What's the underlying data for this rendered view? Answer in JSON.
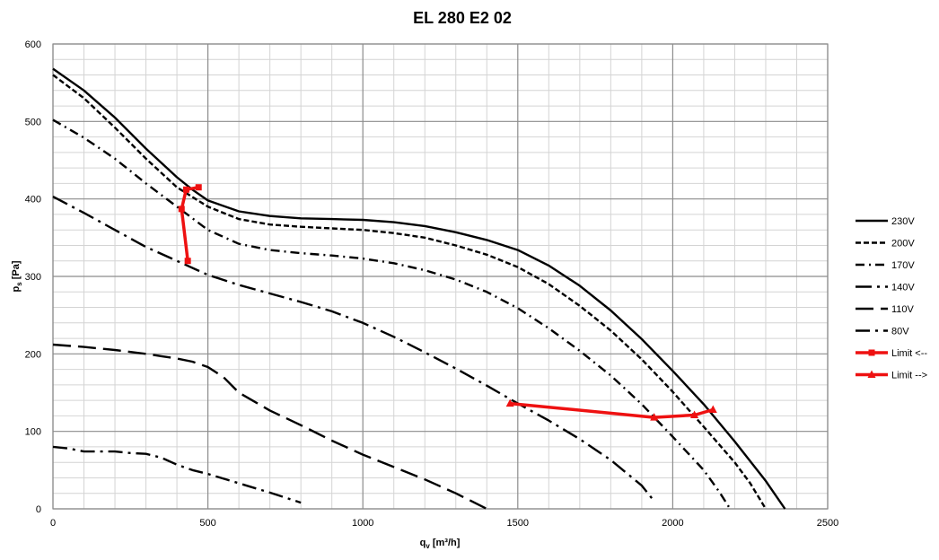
{
  "chart_data": {
    "type": "line",
    "title": "EL 280 E2 02",
    "xlabel": {
      "main": "q",
      "sub": "v",
      "unit": " [m³/h]"
    },
    "ylabel": {
      "main": "p",
      "sub": "s",
      "unit": " [Pa]"
    },
    "xlim": [
      0,
      2500
    ],
    "ylim": [
      0,
      600
    ],
    "x_ticks": [
      0,
      500,
      1000,
      1500,
      2000,
      2500
    ],
    "y_ticks": [
      0,
      100,
      200,
      300,
      400,
      500,
      600
    ],
    "grid": {
      "major": true,
      "minor": true
    },
    "legend": "right",
    "series": [
      {
        "name": "230V",
        "style": "solid",
        "color": "#000000",
        "x": [
          0,
          100,
          200,
          300,
          400,
          450,
          500,
          600,
          700,
          800,
          900,
          1000,
          1100,
          1200,
          1300,
          1400,
          1500,
          1600,
          1700,
          1800,
          1900,
          2000,
          2100,
          2200,
          2300,
          2362
        ],
        "y": [
          568,
          540,
          505,
          465,
          428,
          412,
          398,
          384,
          378,
          375,
          374,
          373,
          370,
          365,
          357,
          347,
          334,
          314,
          288,
          256,
          219,
          178,
          135,
          87,
          36,
          0
        ]
      },
      {
        "name": "200V",
        "style": "dash",
        "color": "#000000",
        "x": [
          0,
          100,
          200,
          300,
          400,
          500,
          600,
          700,
          800,
          900,
          1000,
          1100,
          1200,
          1300,
          1400,
          1500,
          1600,
          1700,
          1800,
          1900,
          2000,
          2100,
          2200,
          2250,
          2300
        ],
        "y": [
          560,
          530,
          492,
          452,
          415,
          390,
          374,
          367,
          364,
          362,
          360,
          356,
          350,
          340,
          328,
          312,
          290,
          262,
          230,
          193,
          151,
          106,
          60,
          33,
          0
        ]
      },
      {
        "name": "170V",
        "style": "dashdot",
        "color": "#000000",
        "x": [
          0,
          100,
          200,
          300,
          400,
          500,
          600,
          700,
          800,
          900,
          1000,
          1100,
          1200,
          1300,
          1400,
          1500,
          1600,
          1700,
          1800,
          1900,
          2000,
          2100,
          2150,
          2185
        ],
        "y": [
          502,
          479,
          452,
          420,
          390,
          360,
          342,
          334,
          330,
          327,
          323,
          317,
          308,
          296,
          280,
          259,
          233,
          204,
          172,
          135,
          93,
          50,
          22,
          0
        ]
      },
      {
        "name": "140V",
        "style": "longdashdot",
        "color": "#000000",
        "x": [
          0,
          100,
          200,
          300,
          400,
          500,
          600,
          700,
          800,
          900,
          1000,
          1100,
          1200,
          1300,
          1400,
          1500,
          1600,
          1700,
          1800,
          1900,
          1940
        ],
        "y": [
          403,
          382,
          360,
          338,
          320,
          302,
          289,
          278,
          267,
          255,
          240,
          222,
          202,
          181,
          159,
          136,
          114,
          90,
          63,
          30,
          10
        ]
      },
      {
        "name": "110V",
        "style": "longdash",
        "color": "#000000",
        "x": [
          0,
          100,
          200,
          300,
          350,
          400,
          450,
          500,
          550,
          600,
          700,
          800,
          900,
          1000,
          1100,
          1200,
          1300,
          1400
        ],
        "y": [
          212,
          209,
          205,
          200,
          197,
          194,
          190,
          183,
          170,
          150,
          127,
          108,
          88,
          70,
          54,
          38,
          20,
          0
        ]
      },
      {
        "name": "80V",
        "style": "longdashdot2",
        "color": "#000000",
        "x": [
          0,
          50,
          100,
          150,
          200,
          250,
          300,
          350,
          400,
          450,
          500,
          600,
          700,
          800
        ],
        "y": [
          80,
          78,
          74,
          74,
          74,
          72,
          71,
          66,
          57,
          50,
          45,
          33,
          21,
          8
        ]
      },
      {
        "name": "Limit <--",
        "style": "solid",
        "color": "#ee1111",
        "marker": "square",
        "x": [
          470,
          430,
          415,
          435
        ],
        "y": [
          415,
          412,
          387,
          320
        ]
      },
      {
        "name": "Limit -->",
        "style": "solid",
        "color": "#ee1111",
        "marker": "triangle",
        "x": [
          1475,
          1940,
          2070,
          2130
        ],
        "y": [
          136,
          118,
          121,
          128
        ]
      }
    ]
  }
}
